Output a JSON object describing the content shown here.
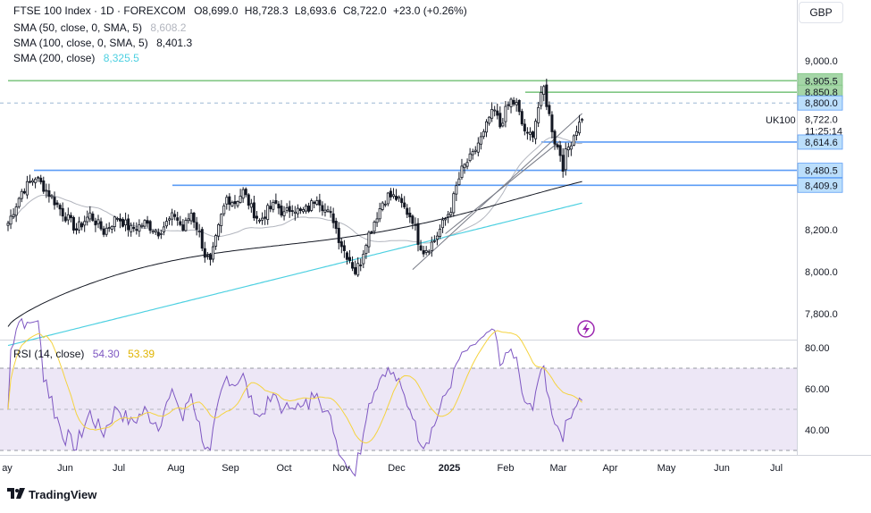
{
  "header": {
    "instrument": "FTSE 100 Index · 1D · FOREXCOM",
    "open_label": "O",
    "open": "8,699.0",
    "high_label": "H",
    "high": "8,728.3",
    "low_label": "L",
    "low": "8,693.6",
    "close_label": "C",
    "close": "8,722.0",
    "change": "+23.0 (+0.26%)"
  },
  "indicators": [
    {
      "label": "SMA (50, close, 0, SMA, 5)",
      "value": "8,608.2",
      "color": "#b2b5be"
    },
    {
      "label": "SMA (100, close, 0, SMA, 5)",
      "value": "8,401.3",
      "color": "#131722"
    },
    {
      "label": "SMA (200, close)",
      "value": "8,325.5",
      "color": "#4dd0e1"
    }
  ],
  "rsi_legend": {
    "label": "RSI (14, close)",
    "value": "54.30",
    "ma_value": "53.39",
    "line_color": "#7e57c2",
    "ma_color": "#f5d33f"
  },
  "currency_button": "GBP",
  "symbol_label": "UK100",
  "countdown": "11:25:14",
  "branding": "TradingView",
  "colors": {
    "up_candle": "#131722",
    "down_candle": "#131722",
    "green_level": "#81c784",
    "blue_level": "#5b9cf6",
    "dashed_level": "#9bb7d4",
    "rsi_band": "#ede7f6"
  },
  "chart_data": {
    "type": "candlestick",
    "title": "FTSE 100 Index · 1D · FOREXCOM",
    "x_tick_labels": [
      "ay",
      "Jun",
      "Jul",
      "Aug",
      "Sep",
      "Oct",
      "Nov",
      "Dec",
      "2025",
      "Feb",
      "Mar",
      "Apr",
      "May",
      "Jun",
      "Jul"
    ],
    "y_ticks": [
      "9,000.0",
      "8,200.0",
      "8,000.0",
      "7,800.0"
    ],
    "ylim": [
      7680,
      9160
    ],
    "price_labels": [
      {
        "text": "8,905.5",
        "value": 8905.5,
        "style": "green"
      },
      {
        "text": "8,850.8",
        "value": 8850.8,
        "style": "green"
      },
      {
        "text": "8,800.0",
        "value": 8800.0,
        "style": "blue"
      },
      {
        "text": "8,722.0",
        "value": 8722.0,
        "style": "last"
      },
      {
        "text": "8,614.6",
        "value": 8614.6,
        "style": "blue"
      },
      {
        "text": "8,480.5",
        "value": 8480.5,
        "style": "blue"
      },
      {
        "text": "8,409.9",
        "value": 8409.9,
        "style": "blue"
      }
    ],
    "horizontal_levels": [
      {
        "value": 8905.5,
        "color": "green",
        "dashed": false
      },
      {
        "value": 8850.8,
        "color": "green",
        "dashed": false
      },
      {
        "value": 8800.0,
        "color": "blue",
        "dashed": true
      },
      {
        "value": 8614.6,
        "color": "blue",
        "dashed": false
      },
      {
        "value": 8480.5,
        "color": "blue",
        "dashed": false
      },
      {
        "value": 8409.9,
        "color": "blue",
        "dashed": false
      }
    ],
    "close_anchors": [
      [
        0,
        8230
      ],
      [
        5,
        8380
      ],
      [
        10,
        8450
      ],
      [
        15,
        8370
      ],
      [
        20,
        8280
      ],
      [
        25,
        8200
      ],
      [
        30,
        8270
      ],
      [
        35,
        8190
      ],
      [
        40,
        8260
      ],
      [
        45,
        8200
      ],
      [
        50,
        8230
      ],
      [
        55,
        8190
      ],
      [
        58,
        8230
      ],
      [
        61,
        8270
      ],
      [
        64,
        8200
      ],
      [
        67,
        8280
      ],
      [
        70,
        8180
      ],
      [
        72,
        8080
      ],
      [
        74,
        8040
      ],
      [
        76,
        8150
      ],
      [
        78,
        8260
      ],
      [
        80,
        8350
      ],
      [
        83,
        8330
      ],
      [
        86,
        8380
      ],
      [
        89,
        8300
      ],
      [
        92,
        8240
      ],
      [
        95,
        8290
      ],
      [
        98,
        8320
      ],
      [
        101,
        8270
      ],
      [
        104,
        8310
      ],
      [
        107,
        8280
      ],
      [
        110,
        8300
      ],
      [
        113,
        8360
      ],
      [
        116,
        8290
      ],
      [
        119,
        8250
      ],
      [
        121,
        8160
      ],
      [
        123,
        8100
      ],
      [
        125,
        8060
      ],
      [
        127,
        8000
      ],
      [
        129,
        8050
      ],
      [
        131,
        8150
      ],
      [
        133,
        8210
      ],
      [
        135,
        8270
      ],
      [
        137,
        8330
      ],
      [
        139,
        8360
      ],
      [
        142,
        8350
      ],
      [
        145,
        8300
      ],
      [
        148,
        8250
      ],
      [
        150,
        8150
      ],
      [
        152,
        8100
      ],
      [
        154,
        8120
      ],
      [
        156,
        8150
      ],
      [
        158,
        8200
      ],
      [
        160,
        8250
      ],
      [
        162,
        8300
      ],
      [
        164,
        8400
      ],
      [
        166,
        8480
      ],
      [
        168,
        8520
      ],
      [
        170,
        8550
      ],
      [
        172,
        8610
      ],
      [
        174,
        8650
      ],
      [
        176,
        8730
      ],
      [
        178,
        8760
      ],
      [
        180,
        8690
      ],
      [
        182,
        8760
      ],
      [
        184,
        8810
      ],
      [
        186,
        8790
      ],
      [
        188,
        8700
      ],
      [
        190,
        8640
      ],
      [
        192,
        8660
      ],
      [
        194,
        8780
      ],
      [
        196,
        8870
      ],
      [
        197,
        8800
      ],
      [
        199,
        8680
      ],
      [
        200,
        8620
      ],
      [
        202,
        8560
      ],
      [
        203,
        8500
      ],
      [
        204,
        8560
      ],
      [
        206,
        8620
      ],
      [
        208,
        8680
      ],
      [
        210,
        8722
      ]
    ],
    "sma_50_last": 8608.2,
    "sma_100_last": 8401.3,
    "sma_200_last": 8325.5,
    "rsi": {
      "type": "line",
      "y_ticks": [
        "80.00",
        "60.00",
        "40.00"
      ],
      "ylim": [
        25,
        85
      ],
      "upper_band": 70,
      "lower_band": 30,
      "mid_band": 50,
      "last_value": 54.3,
      "ma_last_value": 53.39
    }
  }
}
